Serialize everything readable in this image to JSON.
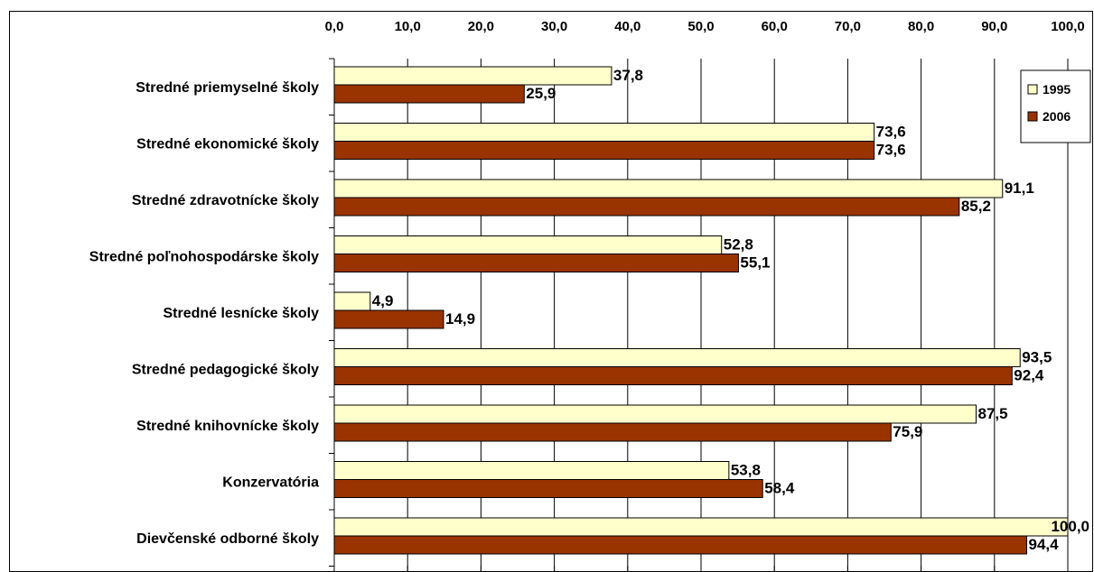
{
  "chart_data": {
    "type": "bar",
    "orientation": "horizontal",
    "title": "",
    "xlabel": "",
    "ylabel": "",
    "xlim": [
      0,
      100
    ],
    "x_ticks": [
      "0,0",
      "10,0",
      "20,0",
      "30,0",
      "40,0",
      "50,0",
      "60,0",
      "70,0",
      "80,0",
      "90,0",
      "100,0"
    ],
    "x_tick_values": [
      0,
      10,
      20,
      30,
      40,
      50,
      60,
      70,
      80,
      90,
      100
    ],
    "grid": true,
    "legend_position": "top-right",
    "categories": [
      "Stredné priemyselné školy",
      "Stredné ekonomické školy",
      "Stredné zdravotnícke školy",
      "Stredné poľnohospodárske školy",
      "Stredné lesnícke školy",
      "Stredné pedagogické školy",
      "Stredné knihovnícke školy",
      "Konzervatória",
      "Dievčenské odborné školy"
    ],
    "series": [
      {
        "name": "1995",
        "color": "#ffffcc",
        "values": [
          37.8,
          73.6,
          91.1,
          52.8,
          4.9,
          93.5,
          87.5,
          53.8,
          100.0
        ],
        "labels": [
          "37,8",
          "73,6",
          "91,1",
          "52,8",
          "4,9",
          "93,5",
          "87,5",
          "53,8",
          "100,0"
        ]
      },
      {
        "name": "2006",
        "color": "#993300",
        "values": [
          25.9,
          73.6,
          85.2,
          55.1,
          14.9,
          92.4,
          75.9,
          58.4,
          94.4
        ],
        "labels": [
          "25,9",
          "73,6",
          "85,2",
          "55,1",
          "14,9",
          "92,4",
          "75,9",
          "58,4",
          "94,4"
        ]
      }
    ]
  }
}
